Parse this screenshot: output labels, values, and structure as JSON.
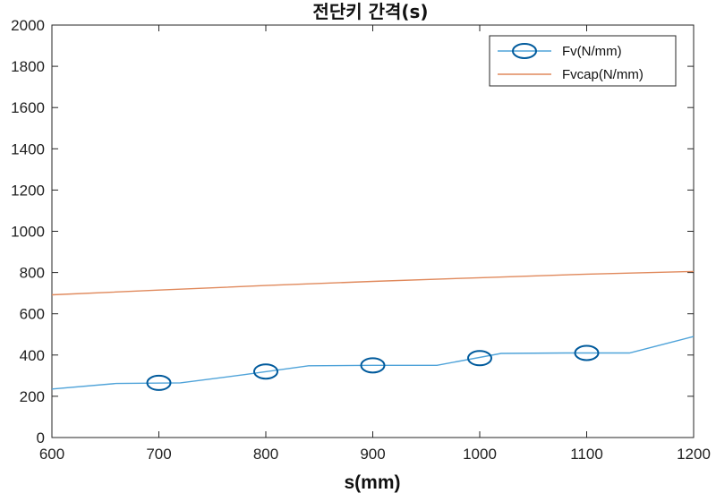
{
  "chart_data": {
    "type": "line",
    "title": "전단키 간격(s)",
    "xlabel": "s(mm)",
    "ylabel": "",
    "xlim": [
      600,
      1200
    ],
    "ylim": [
      0,
      2000
    ],
    "xticks": [
      600,
      700,
      800,
      900,
      1000,
      1100,
      1200
    ],
    "yticks": [
      0,
      200,
      400,
      600,
      800,
      1000,
      1200,
      1400,
      1600,
      1800,
      2000
    ],
    "grid": false,
    "legend": "top-right",
    "series": [
      {
        "name": "Fv(N/mm)",
        "color": "#4fa3d9",
        "marker": "circle",
        "marker_color": "#005a9c",
        "x": [
          600,
          660,
          720,
          780,
          840,
          900,
          960,
          1020,
          1080,
          1140,
          1200
        ],
        "y": [
          235,
          262,
          265,
          305,
          348,
          350,
          350,
          408,
          410,
          410,
          490
        ],
        "markers_x": [
          700,
          800,
          900,
          1000,
          1100
        ],
        "markers_y": [
          265,
          320,
          350,
          385,
          410
        ]
      },
      {
        "name": "Fvcap(N/mm)",
        "color": "#e0895c",
        "marker": "none",
        "x": [
          600,
          700,
          800,
          900,
          1000,
          1100,
          1200
        ],
        "y": [
          692,
          715,
          737,
          757,
          775,
          792,
          805
        ]
      }
    ]
  }
}
